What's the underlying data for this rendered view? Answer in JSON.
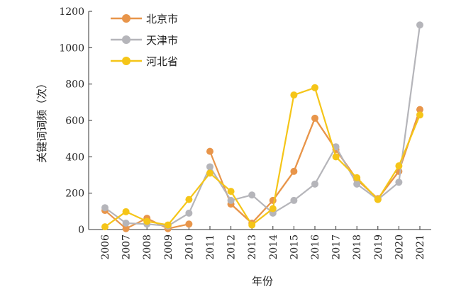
{
  "chart_data": {
    "type": "line",
    "xlabel": "年份",
    "ylabel": "关键词词频（次）",
    "categories": [
      "2006",
      "2007",
      "2008",
      "2009",
      "2010",
      "2011",
      "2012",
      "2013",
      "2014",
      "2015",
      "2016",
      "2017",
      "2018",
      "2019",
      "2020",
      "2021"
    ],
    "yticks": [
      "0",
      "200",
      "400",
      "600",
      "800",
      "1000",
      "1200"
    ],
    "ylim": [
      0,
      1200
    ],
    "grid": false,
    "legend_position": "top-left",
    "series": [
      {
        "name": "北京市",
        "color": "#E8954A",
        "values": [
          105,
          5,
          62,
          5,
          30,
          null,
          140,
          35,
          160,
          320,
          612,
          440,
          275,
          170,
          320,
          660
        ],
        "segment_start": 5,
        "segment_values": [
          430,
          140,
          35,
          160,
          320,
          612,
          440,
          275,
          170,
          320,
          660
        ]
      },
      {
        "name": "天津市",
        "color": "#B5B5BA",
        "values": [
          120,
          35,
          30,
          20,
          90,
          345,
          160,
          190,
          90,
          160,
          250,
          455,
          250,
          165,
          260,
          1125
        ]
      },
      {
        "name": "河北省",
        "color": "#F5C518",
        "values": [
          15,
          98,
          45,
          25,
          165,
          310,
          210,
          25,
          115,
          740,
          780,
          400,
          285,
          165,
          350,
          630
        ]
      }
    ]
  }
}
